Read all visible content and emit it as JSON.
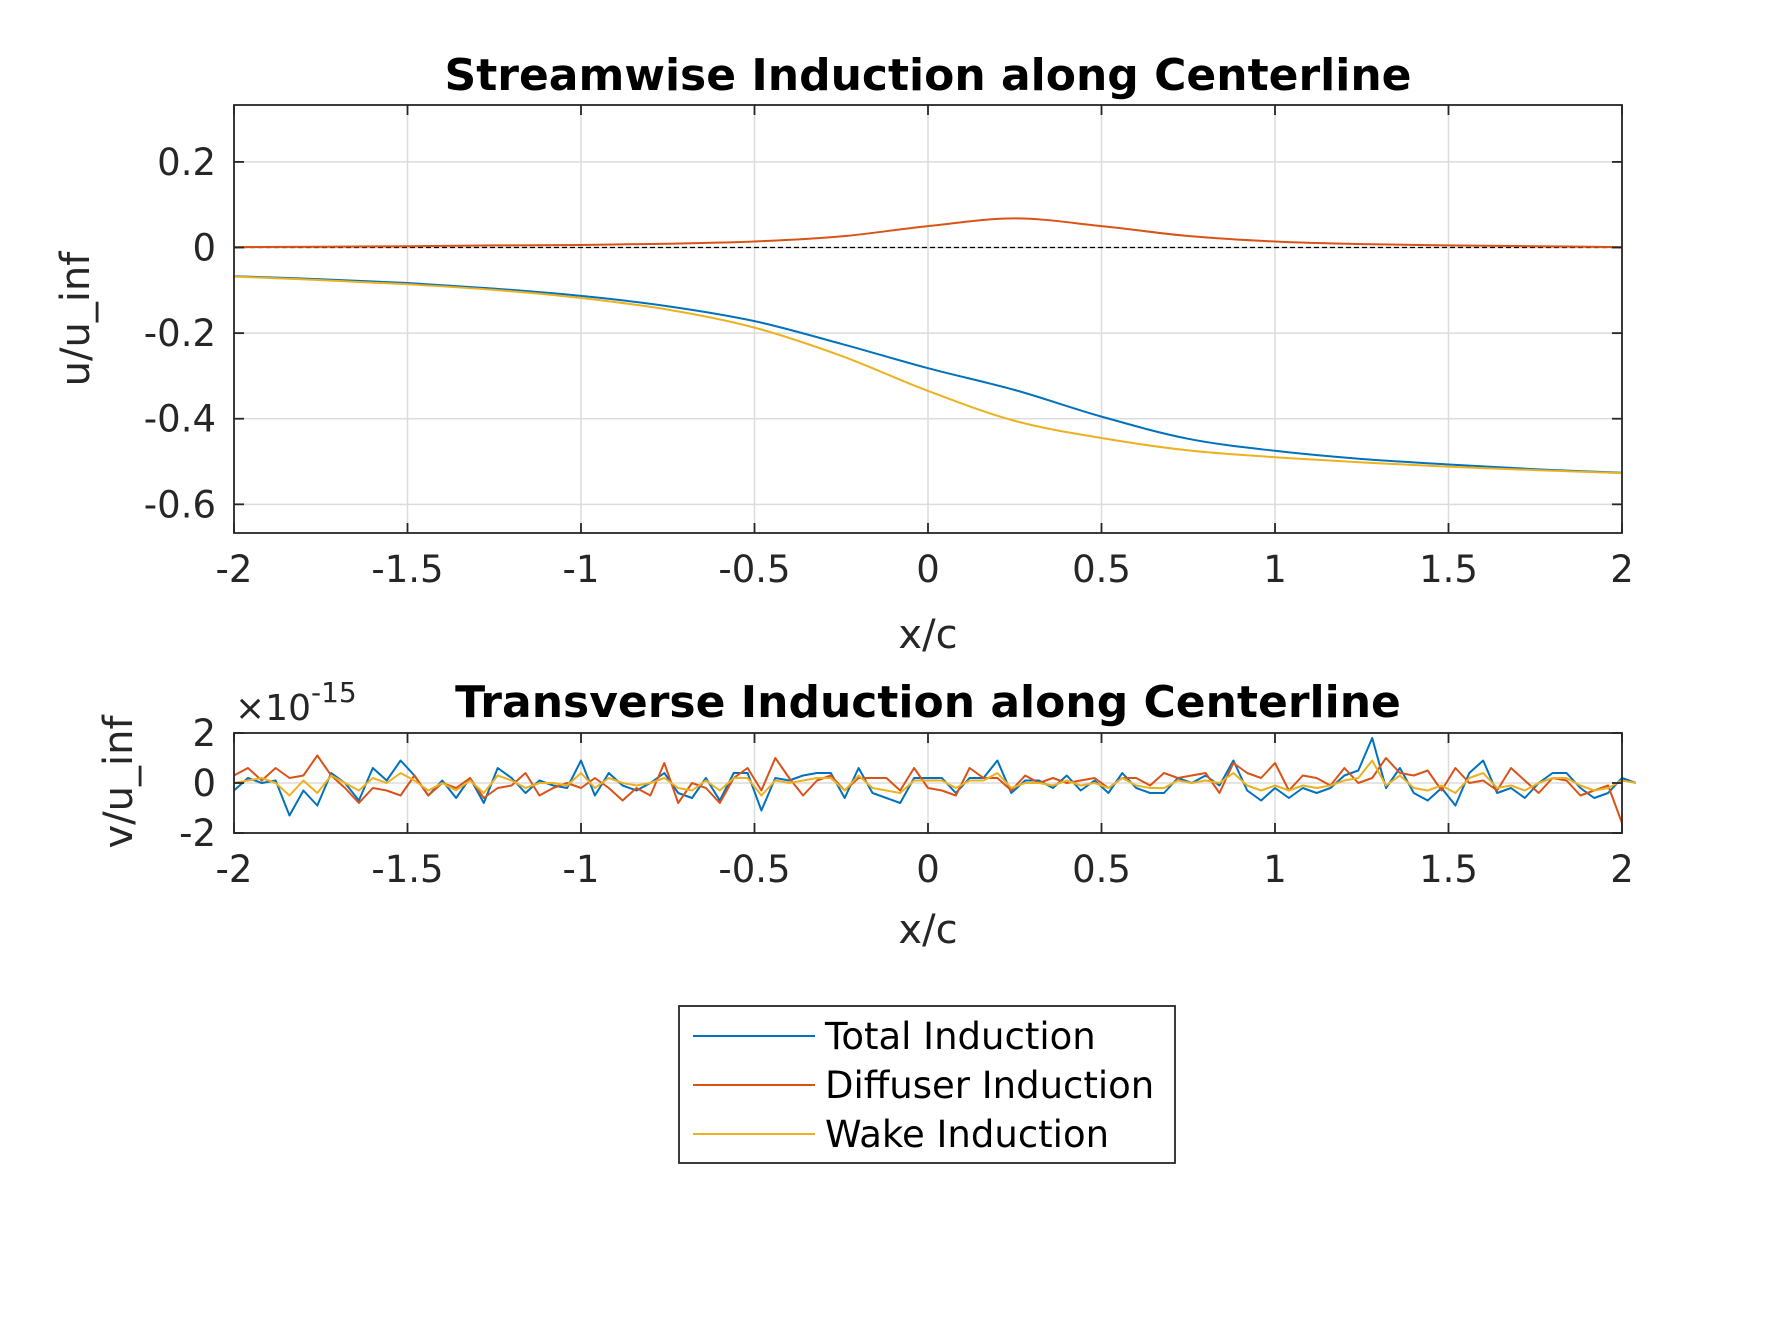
{
  "colors": {
    "total": "#0072BD",
    "diffuser": "#D95319",
    "wake": "#EDB120",
    "zero_line": "#000000"
  },
  "legend": {
    "entries": [
      "Total Induction",
      "Diffuser Induction",
      "Wake Induction"
    ]
  },
  "chart_data": [
    {
      "type": "line",
      "title": "Streamwise Induction along Centerline",
      "xlabel": "x/c",
      "ylabel": "u/u_inf",
      "xlim": [
        -2,
        2
      ],
      "ylim": [
        -0.667,
        0.333
      ],
      "xticks": [
        -2,
        -1.5,
        -1,
        -0.5,
        0,
        0.5,
        1,
        1.5,
        2
      ],
      "xtick_labels": [
        "-2",
        "-1.5",
        "-1",
        "-0.5",
        "0",
        "0.5",
        "1",
        "1.5",
        "2"
      ],
      "yticks": [
        -0.6,
        -0.4,
        -0.2,
        0,
        0.2
      ],
      "ytick_labels": [
        "-0.6",
        "-0.4",
        "-0.2",
        "0",
        "0.2"
      ],
      "grid": true,
      "reference_line": 0,
      "x": [
        -2,
        -1.75,
        -1.5,
        -1.25,
        -1,
        -0.75,
        -0.5,
        -0.25,
        0,
        0.25,
        0.5,
        0.75,
        1,
        1.25,
        1.5,
        1.75,
        2
      ],
      "series": [
        {
          "name": "Total Induction",
          "values": [
            -0.067,
            -0.074,
            -0.083,
            -0.096,
            -0.113,
            -0.137,
            -0.172,
            -0.225,
            -0.282,
            -0.333,
            -0.395,
            -0.447,
            -0.475,
            -0.494,
            -0.507,
            -0.518,
            -0.526
          ]
        },
        {
          "name": "Diffuser Induction",
          "values": [
            0.001,
            0.002,
            0.003,
            0.005,
            0.006,
            0.009,
            0.014,
            0.026,
            0.05,
            0.068,
            0.05,
            0.027,
            0.014,
            0.008,
            0.005,
            0.003,
            0.001
          ]
        },
        {
          "name": "Wake Induction",
          "values": [
            -0.068,
            -0.076,
            -0.086,
            -0.099,
            -0.118,
            -0.145,
            -0.187,
            -0.253,
            -0.335,
            -0.405,
            -0.445,
            -0.474,
            -0.49,
            -0.502,
            -0.512,
            -0.52,
            -0.527
          ]
        }
      ]
    },
    {
      "type": "line",
      "title": "Transverse Induction along Centerline",
      "xlabel": "x/c",
      "ylabel": "v/u_inf",
      "exponent_label": "×10",
      "exponent_power": "-15",
      "xlim": [
        -2,
        2
      ],
      "ylim": [
        -2,
        2
      ],
      "xticks": [
        -2,
        -1.5,
        -1,
        -0.5,
        0,
        0.5,
        1,
        1.5,
        2
      ],
      "xtick_labels": [
        "-2",
        "-1.5",
        "-1",
        "-0.5",
        "0",
        "0.5",
        "1",
        "1.5",
        "2"
      ],
      "yticks": [
        -2,
        0,
        2
      ],
      "ytick_labels": [
        "-2",
        "0",
        "2"
      ],
      "grid": true,
      "x_start": -2,
      "x_step": 0.04,
      "series": [
        {
          "name": "Total Induction",
          "values": [
            -0.3,
            0.2,
            0.0,
            0.1,
            -1.3,
            -0.3,
            -0.9,
            0.4,
            0.0,
            -0.7,
            0.6,
            0.1,
            0.9,
            0.3,
            -0.5,
            0.1,
            -0.6,
            0.2,
            -0.8,
            0.6,
            0.2,
            -0.4,
            0.1,
            -0.1,
            -0.2,
            0.9,
            -0.5,
            0.4,
            -0.1,
            -0.3,
            0.0,
            0.4,
            -0.4,
            -0.6,
            0.2,
            -0.7,
            0.4,
            0.4,
            -1.1,
            0.2,
            0.1,
            0.3,
            0.4,
            0.4,
            -0.6,
            0.6,
            -0.4,
            -0.6,
            -0.8,
            0.2,
            0.2,
            0.2,
            -0.4,
            0.2,
            0.2,
            0.9,
            -0.4,
            0.1,
            0.1,
            -0.2,
            0.3,
            -0.3,
            0.1,
            -0.4,
            0.4,
            -0.2,
            -0.4,
            -0.4,
            0.2,
            0.0,
            0.3,
            -0.1,
            0.9,
            -0.3,
            -0.7,
            -0.2,
            -0.6,
            -0.2,
            -0.4,
            -0.2,
            0.3,
            0.5,
            1.8,
            -0.2,
            0.6,
            -0.4,
            -0.7,
            -0.2,
            -0.9,
            0.4,
            0.9,
            -0.4,
            -0.2,
            -0.6,
            0.0,
            0.4,
            0.4,
            -0.2,
            -0.6,
            -0.4,
            0.2,
            0.0
          ]
        },
        {
          "name": "Diffuser Induction",
          "values": [
            0.3,
            0.6,
            0.1,
            0.6,
            0.2,
            0.3,
            1.1,
            0.3,
            -0.2,
            -0.8,
            -0.2,
            -0.3,
            -0.5,
            0.3,
            -0.5,
            0.0,
            -0.2,
            0.2,
            -0.6,
            -0.2,
            -0.1,
            0.4,
            -0.5,
            -0.2,
            0.0,
            -0.2,
            0.2,
            -0.2,
            -0.7,
            -0.2,
            -0.5,
            0.8,
            -0.8,
            0.0,
            -0.2,
            -0.8,
            0.2,
            0.6,
            -0.3,
            1.0,
            0.2,
            -0.5,
            0.1,
            0.3,
            -0.3,
            0.2,
            0.2,
            0.2,
            -0.3,
            0.6,
            -0.2,
            -0.3,
            -0.5,
            0.6,
            0.2,
            0.2,
            -0.3,
            0.3,
            0.0,
            0.2,
            0.0,
            0.1,
            0.2,
            -0.2,
            0.2,
            0.2,
            -0.1,
            0.4,
            0.2,
            0.3,
            0.4,
            -0.4,
            0.8,
            0.4,
            0.2,
            0.8,
            -0.3,
            0.3,
            0.2,
            -0.1,
            0.6,
            0.0,
            0.2,
            1.0,
            0.4,
            0.3,
            0.5,
            -0.3,
            0.6,
            0.0,
            0.1,
            -0.3,
            0.6,
            0.1,
            -0.4,
            0.2,
            0.1,
            -0.5,
            -0.3,
            -0.1,
            -1.6
          ]
        },
        {
          "name": "Wake Induction",
          "values": [
            0.0,
            0.1,
            0.2,
            0.0,
            -0.5,
            0.1,
            -0.4,
            0.3,
            0.0,
            -0.3,
            0.2,
            0.0,
            0.4,
            0.1,
            -0.3,
            0.0,
            -0.3,
            0.1,
            -0.4,
            0.3,
            0.1,
            -0.2,
            0.0,
            0.0,
            -0.1,
            0.4,
            -0.2,
            0.2,
            0.0,
            -0.1,
            0.0,
            0.2,
            -0.2,
            -0.3,
            0.1,
            -0.3,
            0.2,
            0.2,
            -0.5,
            0.1,
            0.0,
            0.1,
            0.2,
            0.2,
            -0.3,
            0.3,
            -0.2,
            -0.3,
            -0.4,
            0.1,
            0.1,
            0.1,
            -0.2,
            0.1,
            0.1,
            0.4,
            -0.2,
            0.0,
            0.0,
            -0.1,
            0.1,
            -0.1,
            0.0,
            -0.2,
            0.2,
            -0.1,
            -0.2,
            -0.2,
            0.1,
            0.0,
            0.1,
            0.0,
            0.4,
            -0.1,
            -0.3,
            -0.1,
            -0.3,
            -0.1,
            -0.2,
            -0.1,
            0.1,
            0.2,
            0.9,
            -0.1,
            0.3,
            -0.2,
            -0.3,
            -0.1,
            -0.4,
            0.2,
            0.4,
            -0.2,
            -0.1,
            -0.3,
            0.0,
            0.2,
            0.2,
            -0.1,
            -0.3,
            -0.2,
            0.1,
            0.0
          ]
        }
      ]
    }
  ]
}
